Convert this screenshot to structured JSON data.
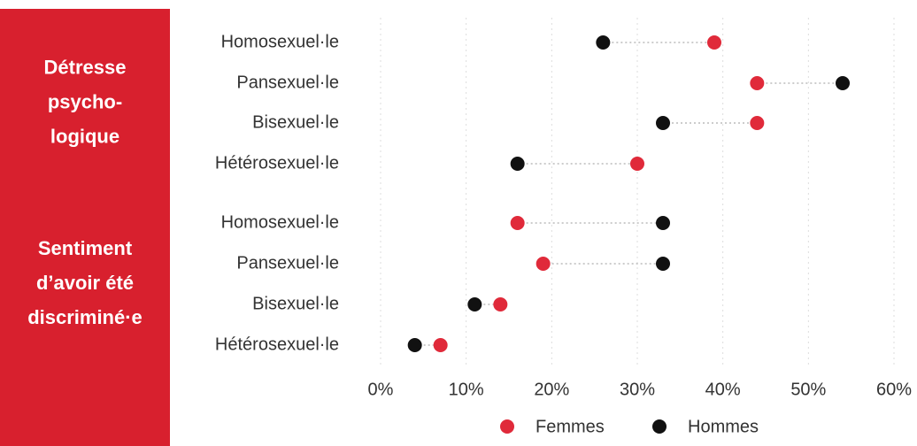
{
  "chart_data": {
    "type": "dumbbell",
    "series": [
      {
        "name": "Femmes",
        "color": "#e02a3a"
      },
      {
        "name": "Hommes",
        "color": "#111111"
      }
    ],
    "groups": [
      {
        "label": [
          "Détresse",
          "psycho-",
          "logique"
        ],
        "categories": [
          "Homosexuel·le",
          "Pansexuel·le",
          "Bisexuel·le",
          "Hétérosexuel·le"
        ],
        "values": [
          [
            39,
            44,
            44,
            30
          ],
          [
            26,
            54,
            33,
            16
          ]
        ]
      },
      {
        "label": [
          "Sentiment",
          "d’avoir été",
          "discriminé·e"
        ],
        "categories": [
          "Homosexuel·le",
          "Pansexuel·le",
          "Bisexuel·le",
          "Hétérosexuel·le"
        ],
        "values": [
          [
            16,
            19,
            14,
            7
          ],
          [
            33,
            33,
            11,
            4
          ]
        ]
      }
    ],
    "xlim": [
      0,
      60
    ],
    "xticks": [
      {
        "value": 0,
        "label": "0%"
      },
      {
        "value": 10,
        "label": "10%"
      },
      {
        "value": 20,
        "label": "20%"
      },
      {
        "value": 30,
        "label": "30%"
      },
      {
        "value": 40,
        "label": "40%"
      },
      {
        "value": 50,
        "label": "50%"
      },
      {
        "value": 60,
        "label": "60%"
      }
    ],
    "grid": true,
    "panel_color": "#d8202e"
  }
}
